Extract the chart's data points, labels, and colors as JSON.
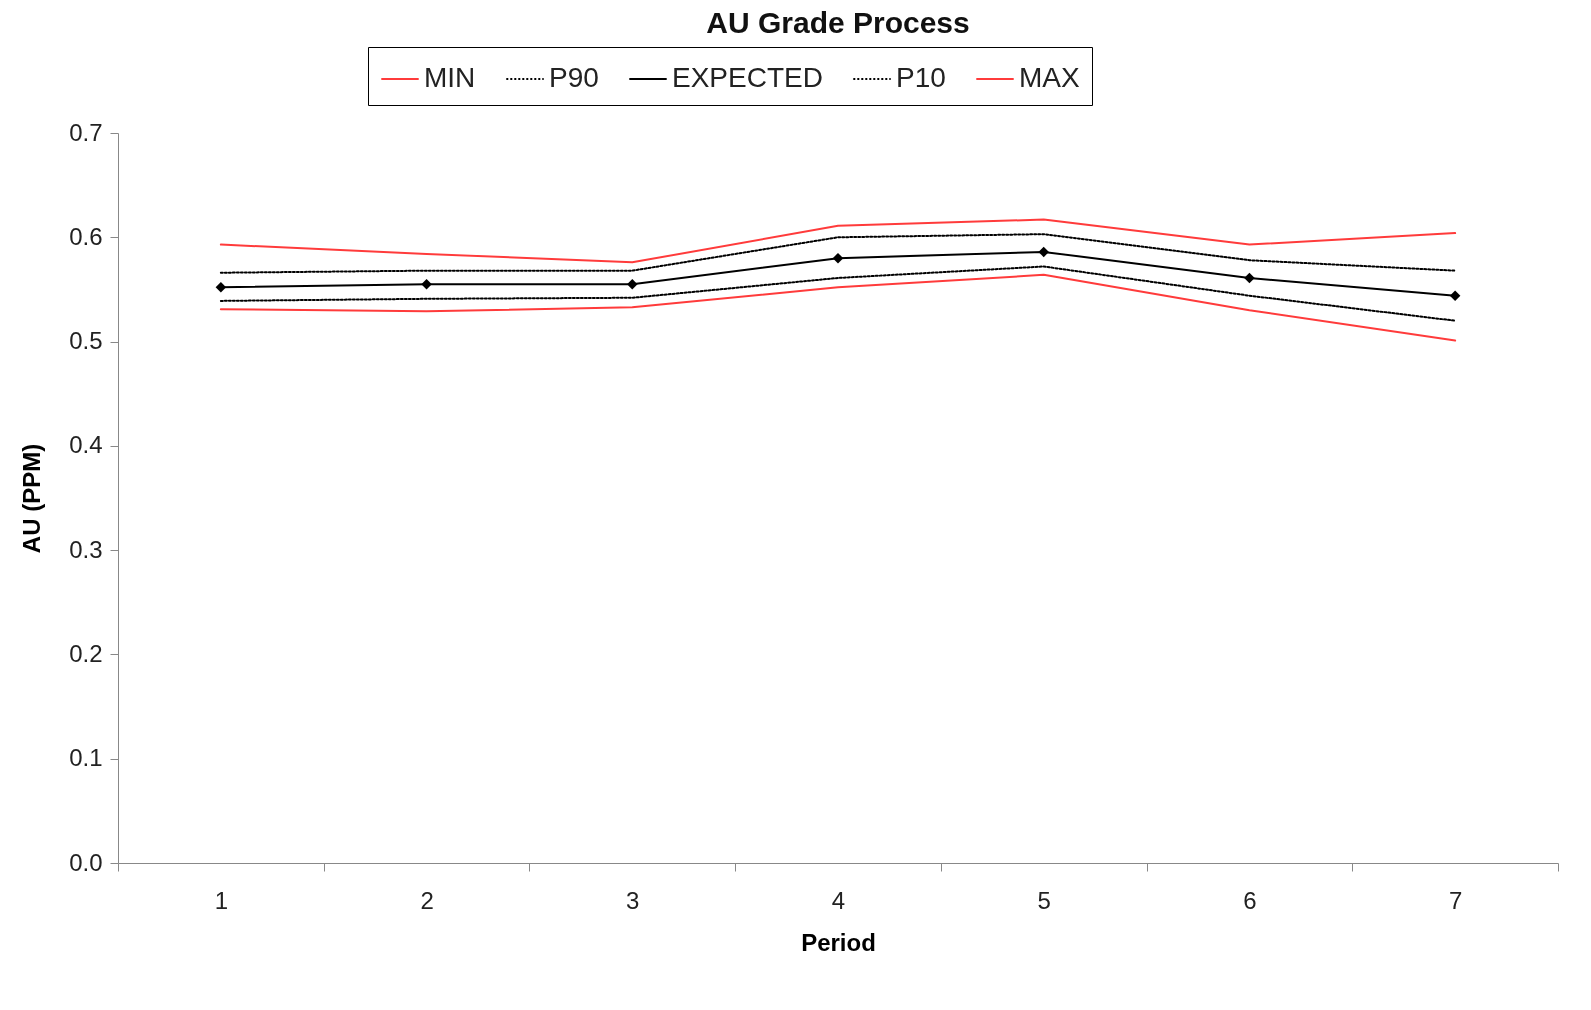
{
  "chart_data": {
    "type": "line",
    "title": "AU Grade Process",
    "xlabel": "Period",
    "ylabel": "AU (PPM)",
    "categories": [
      "1",
      "2",
      "3",
      "4",
      "5",
      "6",
      "7"
    ],
    "series": [
      {
        "name": "MIN",
        "color": "#ff3b3b",
        "line_style": "solid",
        "marker": "none",
        "values": [
          0.531,
          0.529,
          0.533,
          0.552,
          0.564,
          0.53,
          0.501
        ]
      },
      {
        "name": "P90",
        "color": "#000000",
        "line_style": "dotted",
        "marker": "none",
        "values": [
          0.539,
          0.541,
          0.542,
          0.561,
          0.572,
          0.544,
          0.52
        ]
      },
      {
        "name": "EXPECTED",
        "color": "#000000",
        "line_style": "solid",
        "marker": "diamond",
        "values": [
          0.552,
          0.555,
          0.555,
          0.58,
          0.586,
          0.561,
          0.544
        ]
      },
      {
        "name": "P10",
        "color": "#000000",
        "line_style": "dotted",
        "marker": "none",
        "values": [
          0.566,
          0.568,
          0.568,
          0.6,
          0.603,
          0.578,
          0.568
        ]
      },
      {
        "name": "MAX",
        "color": "#ff3b3b",
        "line_style": "solid",
        "marker": "none",
        "values": [
          0.593,
          0.584,
          0.576,
          0.611,
          0.617,
          0.593,
          0.604
        ]
      }
    ],
    "ylim": [
      0,
      0.7
    ],
    "yticks": [
      {
        "value": 0,
        "label": "0.0"
      },
      0.1,
      0.2,
      0.3,
      0.4,
      0.5,
      0.6,
      0.7
    ],
    "grid": false,
    "legend": "top"
  }
}
